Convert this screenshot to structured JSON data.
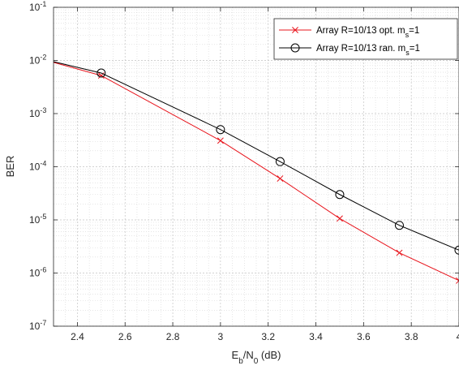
{
  "chart_data": {
    "type": "line",
    "xlabel": {
      "base": "E",
      "sub1": "b",
      "mid": "/N",
      "sub2": "0",
      "tail": " (dB)"
    },
    "ylabel": "BER",
    "xlim": [
      2.3,
      4.0
    ],
    "ylim_log10": [
      -7,
      -1
    ],
    "yscale": "log",
    "grid": "major and minor",
    "legend_position": "top-right",
    "x_ticks": [
      "2.4",
      "2.6",
      "2.8",
      "3",
      "3.2",
      "3.4",
      "3.6",
      "3.8",
      "4"
    ],
    "y_ticks": [
      {
        "base": "10",
        "exp": "-1",
        "value": 0.1
      },
      {
        "base": "10",
        "exp": "-2",
        "value": 0.01
      },
      {
        "base": "10",
        "exp": "-3",
        "value": 0.001
      },
      {
        "base": "10",
        "exp": "-4",
        "value": 0.0001
      },
      {
        "base": "10",
        "exp": "-5",
        "value": 1e-05
      },
      {
        "base": "10",
        "exp": "-6",
        "value": 1e-06
      },
      {
        "base": "10",
        "exp": "-7",
        "value": 1e-07
      }
    ],
    "series": [
      {
        "name": {
          "main": "Array R=10/13 opt. m",
          "sub": "s",
          "tail": "=1"
        },
        "color": "#e8141c",
        "marker": "x",
        "x": [
          2.3,
          2.5,
          3.0,
          3.25,
          3.5,
          3.75,
          4.0
        ],
        "y": [
          0.0092,
          0.0052,
          0.00031,
          6e-05,
          1.06e-05,
          2.4e-06,
          7.2e-07
        ]
      },
      {
        "name": {
          "main": "Array R=10/13 ran. m",
          "sub": "s",
          "tail": "=1"
        },
        "color": "#000000",
        "marker": "o",
        "x": [
          2.3,
          2.5,
          3.0,
          3.25,
          3.5,
          3.75,
          4.0
        ],
        "y": [
          0.0095,
          0.0058,
          0.0005,
          0.000125,
          3e-05,
          7.9e-06,
          2.7e-06
        ]
      }
    ]
  }
}
